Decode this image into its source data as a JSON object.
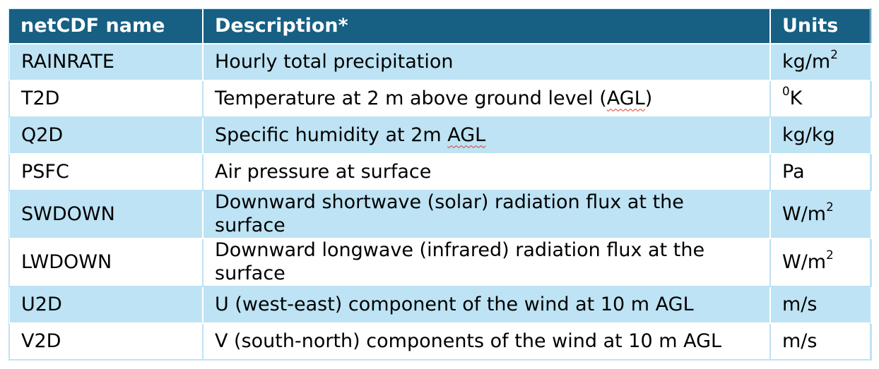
{
  "table": {
    "headers": [
      "netCDF name",
      "Description*",
      "Units"
    ],
    "rows": [
      {
        "name": "RAINRATE",
        "desc_pre": "Hourly total precipitation",
        "desc_flag": "",
        "desc_post": "",
        "unit_base": "kg/m",
        "unit_sup": "2",
        "unit_after": "",
        "unit_pre": "",
        "h": "h1"
      },
      {
        "name": "T2D",
        "desc_pre": "Temperature at 2 m above ground level (",
        "desc_flag": "AGL",
        "desc_post": ")",
        "unit_pre": "0",
        "unit_base": "K",
        "unit_sup": "",
        "unit_after": "",
        "h": "h1"
      },
      {
        "name": "Q2D",
        "desc_pre": "Specific humidity at 2m ",
        "desc_flag": "AGL",
        "desc_post": "",
        "unit_pre": "",
        "unit_base": "kg/kg",
        "unit_sup": "",
        "unit_after": "",
        "h": "h1"
      },
      {
        "name": "PSFC",
        "desc_pre": "Air pressure at surface",
        "desc_flag": "",
        "desc_post": "",
        "unit_pre": "",
        "unit_base": "Pa",
        "unit_sup": "",
        "unit_after": "",
        "h": "h1"
      },
      {
        "name": "SWDOWN",
        "desc_pre": "Downward shortwave (solar) radiation flux at the surface",
        "desc_flag": "",
        "desc_post": "",
        "unit_pre": "",
        "unit_base": "W/m",
        "unit_sup": "2",
        "unit_after": "",
        "h": "h2"
      },
      {
        "name": "LWDOWN",
        "desc_pre": "Downward longwave (infrared) radiation flux at the surface",
        "desc_flag": "",
        "desc_post": "",
        "unit_pre": "",
        "unit_base": "W/m",
        "unit_sup": "2",
        "unit_after": "",
        "h": "h2"
      },
      {
        "name": "U2D",
        "desc_pre": "U (west-east) component of the wind at 10 m AGL",
        "desc_flag": "",
        "desc_post": "",
        "unit_pre": "",
        "unit_base": "m/s",
        "unit_sup": "",
        "unit_after": "",
        "h": "h1"
      },
      {
        "name": "V2D",
        "desc_pre": "V (south-north) components of the wind at 10 m AGL",
        "desc_flag": "",
        "desc_post": "",
        "unit_pre": "",
        "unit_base": "m/s",
        "unit_sup": "",
        "unit_after": "",
        "h": "h1"
      }
    ]
  },
  "colors": {
    "header_bg": "#175f83",
    "header_text": "#ffffff",
    "band_odd": "#bde3f4",
    "band_even": "#ffffff",
    "spellcheck_underline": "#e0352b"
  }
}
